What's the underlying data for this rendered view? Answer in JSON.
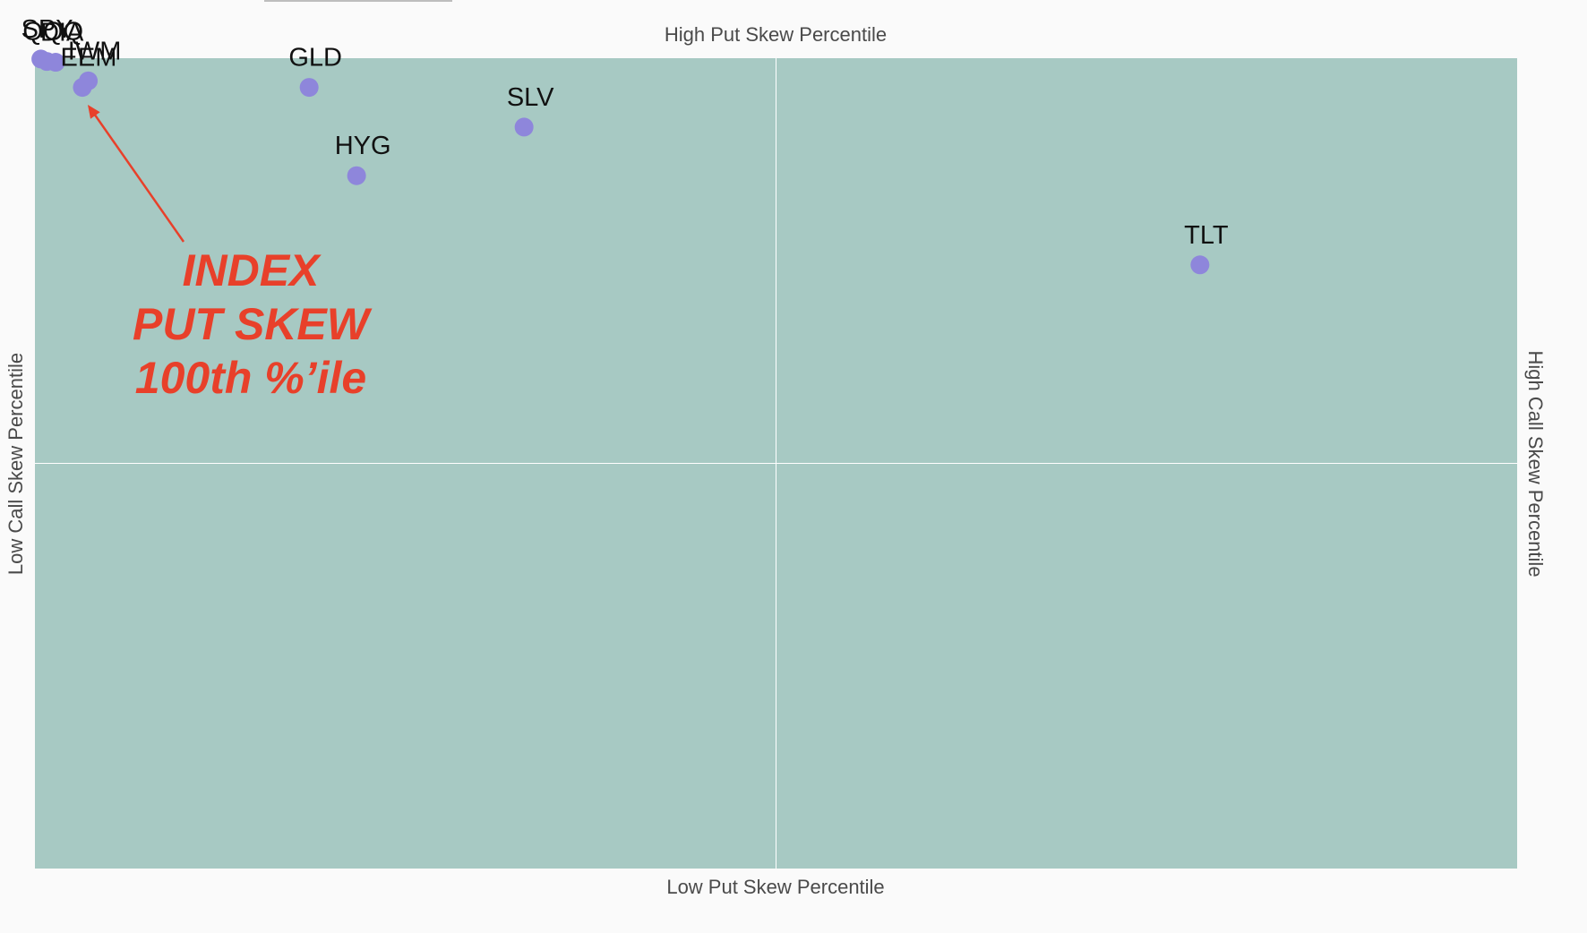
{
  "axes": {
    "top": "High Put Skew Percentile",
    "bottom": "Low Put Skew Percentile",
    "left": "Low Call Skew Percentile",
    "right": "High Call Skew Percentile"
  },
  "annotation": {
    "lines": [
      "INDEX",
      "PUT SKEW",
      "100th %’ile"
    ],
    "color": "#e8402a"
  },
  "colors": {
    "plot_background": "#a7c9c3",
    "point": "#8e86db",
    "gridline": "#ffffff",
    "annotation": "#e8402a"
  },
  "chart_data": {
    "type": "scatter",
    "xlim": [
      0,
      100
    ],
    "ylim": [
      0,
      100
    ],
    "grid": false,
    "quadrant_lines": {
      "x": 50,
      "y": 50
    },
    "points": [
      {
        "label": "SPY",
        "x": 0.4,
        "y": 99.9
      },
      {
        "label": "QQQ",
        "x": 0.8,
        "y": 99.6
      },
      {
        "label": "DIA",
        "x": 1.4,
        "y": 99.5
      },
      {
        "label": "IWM",
        "x": 3.6,
        "y": 97.2
      },
      {
        "label": "EEM",
        "x": 3.2,
        "y": 96.4
      },
      {
        "label": "GLD",
        "x": 18.5,
        "y": 96.4
      },
      {
        "label": "SLV",
        "x": 33.0,
        "y": 91.5
      },
      {
        "label": "HYG",
        "x": 21.7,
        "y": 85.5
      },
      {
        "label": "TLT",
        "x": 78.6,
        "y": 74.5
      }
    ]
  }
}
